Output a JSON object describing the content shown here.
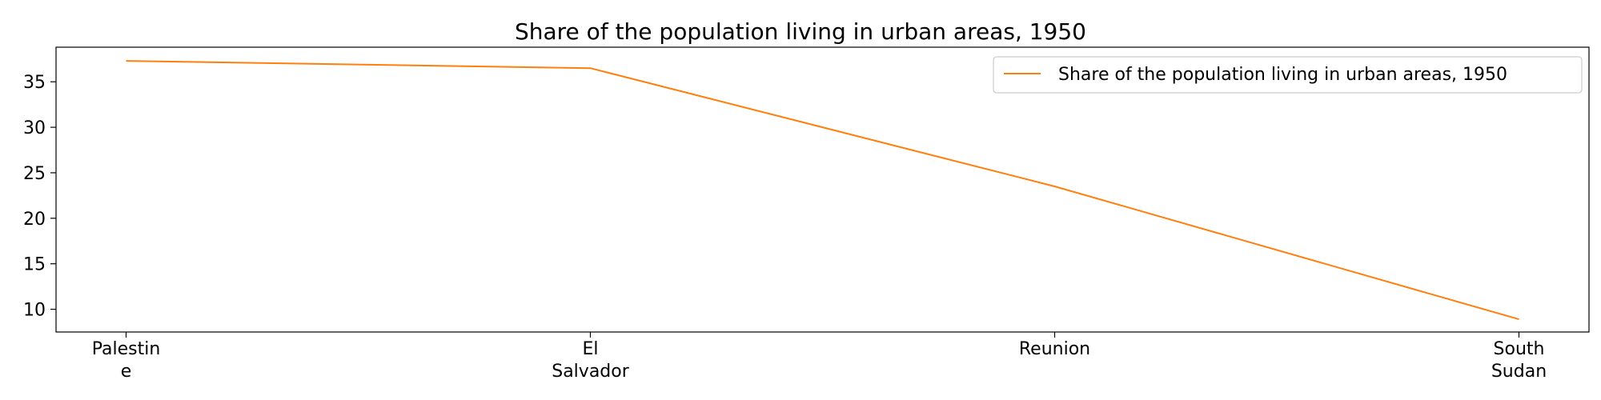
{
  "chart_data": {
    "type": "line",
    "title": "Share of the population living in urban areas, 1950",
    "xlabel": "",
    "ylabel": "",
    "categories": [
      [
        "Palestin",
        "e"
      ],
      [
        "El",
        "Salvador"
      ],
      [
        "Reunion"
      ],
      [
        "South",
        "Sudan"
      ]
    ],
    "series": [
      {
        "name": "Share of the population living in urban areas, 1950",
        "color": "#ff7f0e",
        "values": [
          37.3,
          36.5,
          23.5,
          8.9
        ]
      }
    ],
    "yticks": [
      10,
      15,
      20,
      25,
      30,
      35
    ],
    "ylim": [
      7.5,
      38.8
    ],
    "grid": false,
    "legend": "top-right"
  }
}
